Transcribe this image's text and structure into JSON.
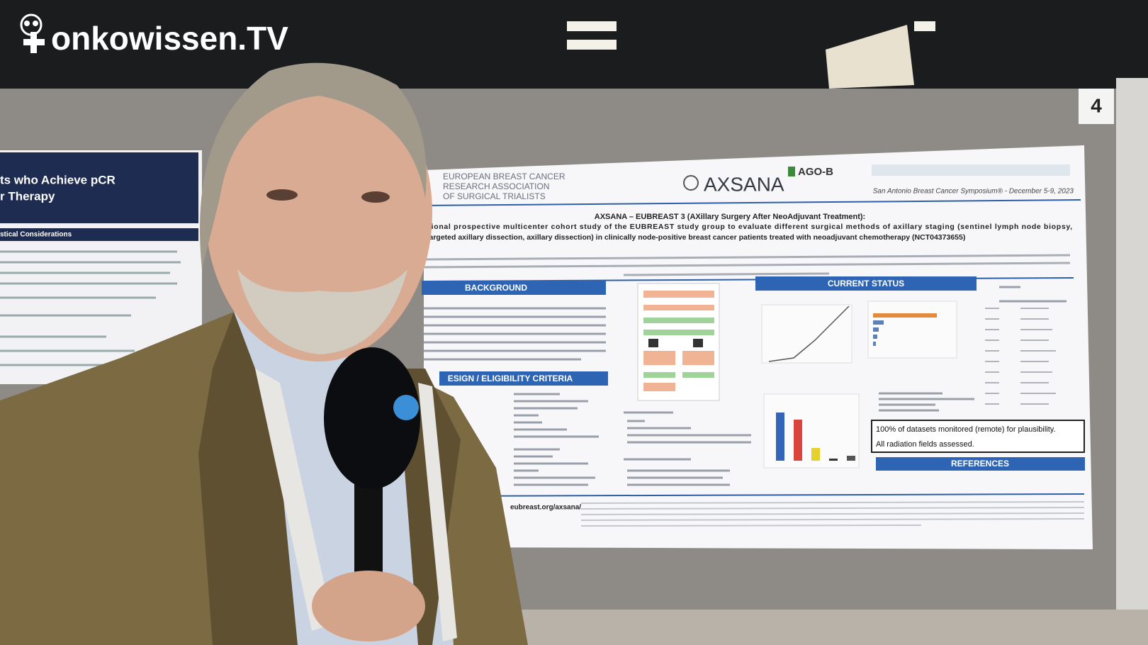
{
  "logo": {
    "text": "onkowissen.TV"
  },
  "booth_number": "4",
  "left_poster": {
    "title_line_1": "ts who Achieve pCR",
    "title_line_2": "r Therapy",
    "section": "stical Considerations"
  },
  "poster": {
    "society": [
      "EUROPEAN BREAST CANCER",
      "RESEARCH ASSOCIATION",
      "OF SURGICAL TRIALISTS"
    ],
    "brand": "AXSANA",
    "partner": "AGO-B",
    "meeting": "San Antonio Breast Cancer Symposium® - December 5-9, 2023",
    "title": "AXSANA – EUBREAST 3 (AXillary Surgery After NeoAdjuvant Treatment):",
    "subtitle": [
      "ational prospective multicenter cohort study of the EUBREAST study group to evaluate different surgical methods of axillary staging (sentinel lymph node biopsy,",
      "targeted axillary dissection, axillary dissection) in clinically node-positive breast cancer patients treated with neoadjuvant chemotherapy (NCT04373655)"
    ],
    "sections": [
      "BACKGROUND",
      "CURRENT STATUS",
      "ESIGN / ELIGIBILITY CRITERIA",
      "REFERENCES"
    ],
    "highlight": [
      "100% of datasets monitored (remote) for plausibility.",
      "All radiation fields assessed."
    ],
    "website": "eubreast.org/axsana/"
  }
}
